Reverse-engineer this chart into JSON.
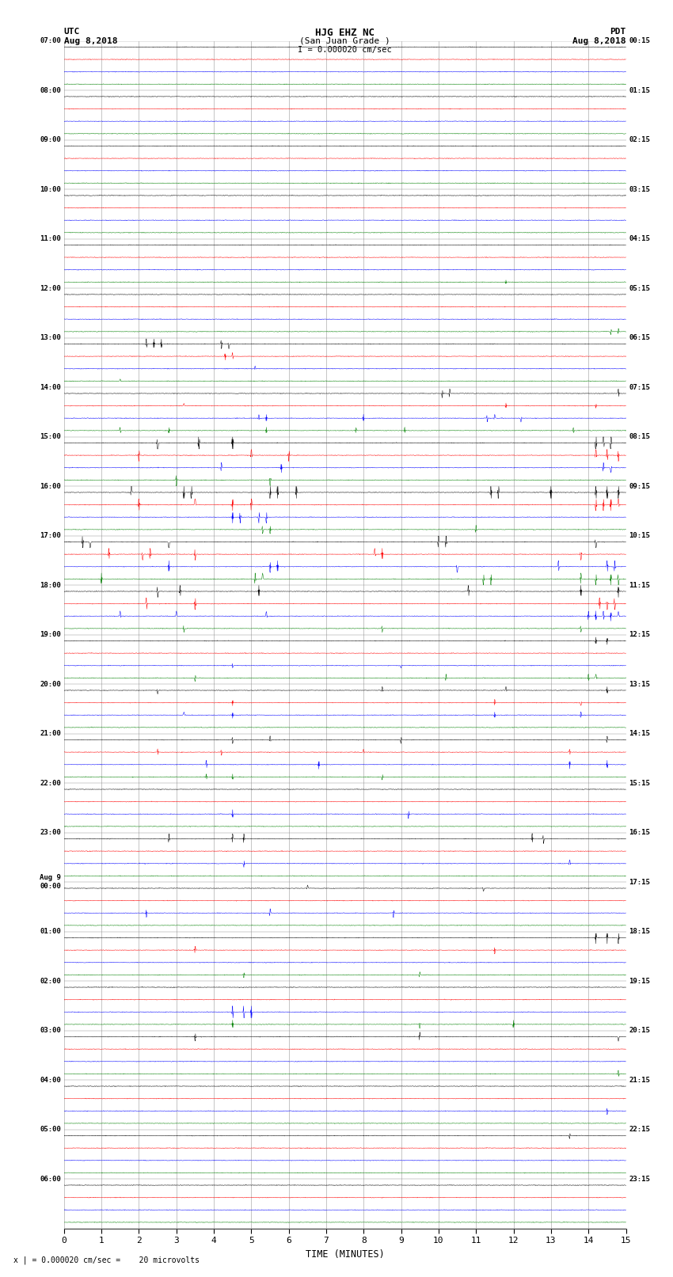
{
  "title_line1": "HJG EHZ NC",
  "title_line2": "(San Juan Grade )",
  "title_line3": "I = 0.000020 cm/sec",
  "left_header_line1": "UTC",
  "left_header_line2": "Aug 8,2018",
  "right_header_line1": "PDT",
  "right_header_line2": "Aug 8,2018",
  "xlabel": "TIME (MINUTES)",
  "footer": "x | = 0.000020 cm/sec =    20 microvolts",
  "xlim": [
    0,
    15
  ],
  "xticks": [
    0,
    1,
    2,
    3,
    4,
    5,
    6,
    7,
    8,
    9,
    10,
    11,
    12,
    13,
    14,
    15
  ],
  "utc_labels": [
    "07:00",
    "08:00",
    "09:00",
    "10:00",
    "11:00",
    "12:00",
    "13:00",
    "14:00",
    "15:00",
    "16:00",
    "17:00",
    "18:00",
    "19:00",
    "20:00",
    "21:00",
    "22:00",
    "23:00",
    "Aug 9\n00:00",
    "01:00",
    "02:00",
    "03:00",
    "04:00",
    "05:00",
    "06:00"
  ],
  "pdt_labels": [
    "00:15",
    "01:15",
    "02:15",
    "03:15",
    "04:15",
    "05:15",
    "06:15",
    "07:15",
    "08:15",
    "09:15",
    "10:15",
    "11:15",
    "12:15",
    "13:15",
    "14:15",
    "15:15",
    "16:15",
    "17:15",
    "18:15",
    "19:15",
    "20:15",
    "21:15",
    "22:15",
    "23:15"
  ],
  "num_hours": 24,
  "traces_per_hour": 4,
  "row_colors": [
    "black",
    "red",
    "blue",
    "green"
  ],
  "background_color": "white",
  "grid_color": "#999999",
  "noise_std": 0.012,
  "spike_events": [
    {
      "row": 19,
      "positions": [
        11.8
      ],
      "amp": 0.15
    },
    {
      "row": 23,
      "positions": [
        14.6,
        14.8
      ],
      "amp": 0.25
    },
    {
      "row": 24,
      "positions": [
        2.2,
        2.4,
        2.6,
        4.2,
        4.4
      ],
      "amp": 0.4
    },
    {
      "row": 25,
      "positions": [
        4.3,
        4.5
      ],
      "amp": 0.3
    },
    {
      "row": 26,
      "positions": [
        5.1
      ],
      "amp": 0.2
    },
    {
      "row": 27,
      "positions": [
        1.5
      ],
      "amp": 0.15
    },
    {
      "row": 28,
      "positions": [
        10.1,
        10.3,
        14.8
      ],
      "amp": 0.35
    },
    {
      "row": 29,
      "positions": [
        3.2,
        11.8,
        14.2
      ],
      "amp": 0.2
    },
    {
      "row": 30,
      "positions": [
        5.2,
        5.4,
        8.0,
        11.3,
        11.5,
        12.2
      ],
      "amp": 0.3
    },
    {
      "row": 31,
      "positions": [
        1.5,
        2.8,
        5.4,
        7.8,
        9.1,
        13.6
      ],
      "amp": 0.25
    },
    {
      "row": 32,
      "positions": [
        2.5,
        3.6,
        4.5,
        14.2,
        14.4,
        14.6
      ],
      "amp": 1.2
    },
    {
      "row": 33,
      "positions": [
        2.0,
        5.0,
        6.0,
        14.2,
        14.5,
        14.8
      ],
      "amp": 0.5
    },
    {
      "row": 34,
      "positions": [
        4.2,
        5.8,
        14.4,
        14.6
      ],
      "amp": 0.4
    },
    {
      "row": 35,
      "positions": [
        3.0,
        5.5
      ],
      "amp": 0.5
    },
    {
      "row": 36,
      "positions": [
        1.8,
        3.2,
        3.4,
        5.5,
        5.7,
        6.2,
        11.4,
        11.6,
        13.0,
        14.2,
        14.5,
        14.8
      ],
      "amp": 0.8
    },
    {
      "row": 37,
      "positions": [
        2.0,
        3.5,
        4.5,
        5.0,
        14.2,
        14.4,
        14.6,
        14.8
      ],
      "amp": 0.6
    },
    {
      "row": 38,
      "positions": [
        4.5,
        4.7,
        5.2,
        5.4
      ],
      "amp": 0.5
    },
    {
      "row": 39,
      "positions": [
        5.3,
        5.5,
        11.0
      ],
      "amp": 0.35
    },
    {
      "row": 40,
      "positions": [
        0.5,
        0.7,
        2.8,
        10.0,
        10.2,
        14.2
      ],
      "amp": 0.6
    },
    {
      "row": 41,
      "positions": [
        1.2,
        2.1,
        2.3,
        3.5,
        8.3,
        8.5,
        13.8
      ],
      "amp": 0.5
    },
    {
      "row": 42,
      "positions": [
        2.8,
        5.5,
        5.7,
        10.5,
        13.2,
        14.5,
        14.7
      ],
      "amp": 0.5
    },
    {
      "row": 43,
      "positions": [
        1.0,
        5.1,
        5.3,
        11.2,
        11.4,
        13.8,
        14.2,
        14.6,
        14.8
      ],
      "amp": 0.5
    },
    {
      "row": 44,
      "positions": [
        2.5,
        3.1,
        5.2,
        10.8,
        13.8,
        14.8
      ],
      "amp": 0.5
    },
    {
      "row": 45,
      "positions": [
        2.2,
        3.5,
        14.3,
        14.5,
        14.7
      ],
      "amp": 0.6
    },
    {
      "row": 46,
      "positions": [
        1.5,
        3.0,
        5.4,
        14.0,
        14.2,
        14.4,
        14.6,
        14.8
      ],
      "amp": 0.4
    },
    {
      "row": 47,
      "positions": [
        3.2,
        8.5,
        13.8
      ],
      "amp": 0.3
    },
    {
      "row": 48,
      "positions": [
        14.2,
        14.5
      ],
      "amp": 0.3
    },
    {
      "row": 50,
      "positions": [
        4.5,
        9.0
      ],
      "amp": 0.2
    },
    {
      "row": 51,
      "positions": [
        3.5,
        10.2,
        14.0,
        14.2
      ],
      "amp": 0.3
    },
    {
      "row": 52,
      "positions": [
        2.5,
        8.5,
        11.8,
        14.5
      ],
      "amp": 0.3
    },
    {
      "row": 53,
      "positions": [
        4.5,
        11.5,
        13.8
      ],
      "amp": 0.25
    },
    {
      "row": 54,
      "positions": [
        3.2,
        4.5,
        11.5,
        13.8
      ],
      "amp": 0.25
    },
    {
      "row": 56,
      "positions": [
        4.5,
        5.5,
        9.0,
        14.5
      ],
      "amp": 0.3
    },
    {
      "row": 57,
      "positions": [
        2.5,
        4.2,
        8.0,
        13.5
      ],
      "amp": 0.25
    },
    {
      "row": 58,
      "positions": [
        3.8,
        6.8,
        13.5,
        14.5
      ],
      "amp": 0.35
    },
    {
      "row": 59,
      "positions": [
        3.8,
        4.5,
        8.5
      ],
      "amp": 0.25
    },
    {
      "row": 62,
      "positions": [
        4.5,
        9.2
      ],
      "amp": 0.35
    },
    {
      "row": 64,
      "positions": [
        2.8,
        4.5,
        4.8,
        12.5,
        12.8
      ],
      "amp": 0.4
    },
    {
      "row": 66,
      "positions": [
        4.8,
        13.5
      ],
      "amp": 0.3
    },
    {
      "row": 68,
      "positions": [
        6.5,
        11.2
      ],
      "amp": 0.25
    },
    {
      "row": 70,
      "positions": [
        2.2,
        5.5,
        8.8
      ],
      "amp": 0.35
    },
    {
      "row": 72,
      "positions": [
        14.2,
        14.5,
        14.8
      ],
      "amp": 0.5
    },
    {
      "row": 73,
      "positions": [
        3.5,
        11.5
      ],
      "amp": 0.3
    },
    {
      "row": 75,
      "positions": [
        4.8,
        9.5
      ],
      "amp": 0.25
    },
    {
      "row": 78,
      "positions": [
        4.5,
        4.8,
        5.0
      ],
      "amp": 0.7
    },
    {
      "row": 79,
      "positions": [
        4.5,
        9.5,
        12.0
      ],
      "amp": 0.35
    },
    {
      "row": 80,
      "positions": [
        3.5,
        9.5,
        14.8
      ],
      "amp": 0.35
    },
    {
      "row": 83,
      "positions": [
        14.8
      ],
      "amp": 0.3
    },
    {
      "row": 86,
      "positions": [
        14.5
      ],
      "amp": 0.3
    },
    {
      "row": 88,
      "positions": [
        13.5
      ],
      "amp": 0.25
    }
  ],
  "seed": 12345
}
